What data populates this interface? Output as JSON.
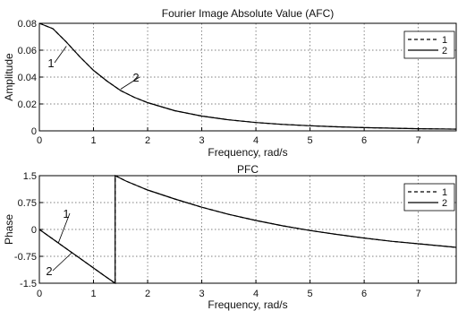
{
  "chart_data": [
    {
      "type": "line",
      "title": "Fourier Image Absolute Value (AFC)",
      "xlabel": "Frequency, rad/s",
      "ylabel": "Amplitude",
      "xlim": [
        0,
        7.7
      ],
      "ylim": [
        0,
        0.08
      ],
      "xticks": [
        "0",
        "1",
        "2",
        "3",
        "4",
        "5",
        "6",
        "7"
      ],
      "yticks": [
        "0",
        "0.02",
        "0.04",
        "0.06",
        "0.08"
      ],
      "grid": true,
      "legend": {
        "placement": "top-right",
        "entries": [
          "1",
          "2"
        ]
      },
      "annotations": [
        "1",
        "2"
      ],
      "series": [
        {
          "name": "1",
          "x": [
            0,
            0.25,
            0.5,
            0.75,
            1.0,
            1.25,
            1.5,
            1.75,
            2.0,
            2.5,
            3.0,
            3.5,
            4.0,
            4.5,
            5.0,
            5.5,
            6.0,
            6.5,
            7.0,
            7.7
          ],
          "y": [
            0.08,
            0.076,
            0.066,
            0.055,
            0.045,
            0.037,
            0.03,
            0.025,
            0.021,
            0.015,
            0.011,
            0.0082,
            0.0062,
            0.0048,
            0.0038,
            0.003,
            0.0024,
            0.002,
            0.0016,
            0.0013
          ]
        },
        {
          "name": "2",
          "x": [
            0,
            0.25,
            0.5,
            0.75,
            1.0,
            1.25,
            1.5,
            1.75,
            2.0,
            2.5,
            3.0,
            3.5,
            4.0,
            4.5,
            5.0,
            5.5,
            6.0,
            6.5,
            7.0,
            7.7
          ],
          "y": [
            0.08,
            0.076,
            0.066,
            0.055,
            0.045,
            0.037,
            0.03,
            0.025,
            0.021,
            0.015,
            0.011,
            0.0082,
            0.0062,
            0.0048,
            0.0038,
            0.003,
            0.0024,
            0.002,
            0.0016,
            0.0013
          ]
        }
      ]
    },
    {
      "type": "line",
      "title": "PFC",
      "xlabel": "Frequency, rad/s",
      "ylabel": "Phase",
      "xlim": [
        0,
        7.7
      ],
      "ylim": [
        -1.5,
        1.5
      ],
      "xticks": [
        "0",
        "1",
        "2",
        "3",
        "4",
        "5",
        "6",
        "7"
      ],
      "yticks": [
        "-1.5",
        "-0.75",
        "0",
        "0.75",
        "1.5"
      ],
      "grid": true,
      "legend": {
        "placement": "top-right",
        "entries": [
          "1",
          "2"
        ]
      },
      "annotations": [
        "1",
        "2"
      ],
      "series": [
        {
          "name": "1",
          "x": [
            0,
            0.4,
            0.8,
            1.2,
            1.4,
            1.4,
            1.6,
            2.0,
            2.5,
            3.0,
            3.5,
            4.0,
            4.5,
            5.0,
            5.5,
            6.0,
            6.5,
            7.0,
            7.7
          ],
          "y": [
            0,
            -0.43,
            -0.86,
            -1.29,
            -1.5,
            1.5,
            1.35,
            1.1,
            0.85,
            0.62,
            0.42,
            0.25,
            0.1,
            -0.03,
            -0.14,
            -0.24,
            -0.33,
            -0.4,
            -0.5
          ]
        },
        {
          "name": "2",
          "x": [
            0,
            0.4,
            0.8,
            1.2,
            1.4,
            1.4,
            1.6,
            2.0,
            2.5,
            3.0,
            3.5,
            4.0,
            4.5,
            5.0,
            5.5,
            6.0,
            6.5,
            7.0,
            7.7
          ],
          "y": [
            0,
            -0.43,
            -0.86,
            -1.29,
            -1.5,
            1.5,
            1.35,
            1.1,
            0.85,
            0.62,
            0.42,
            0.25,
            0.1,
            -0.03,
            -0.14,
            -0.24,
            -0.33,
            -0.4,
            -0.5
          ]
        }
      ]
    }
  ]
}
